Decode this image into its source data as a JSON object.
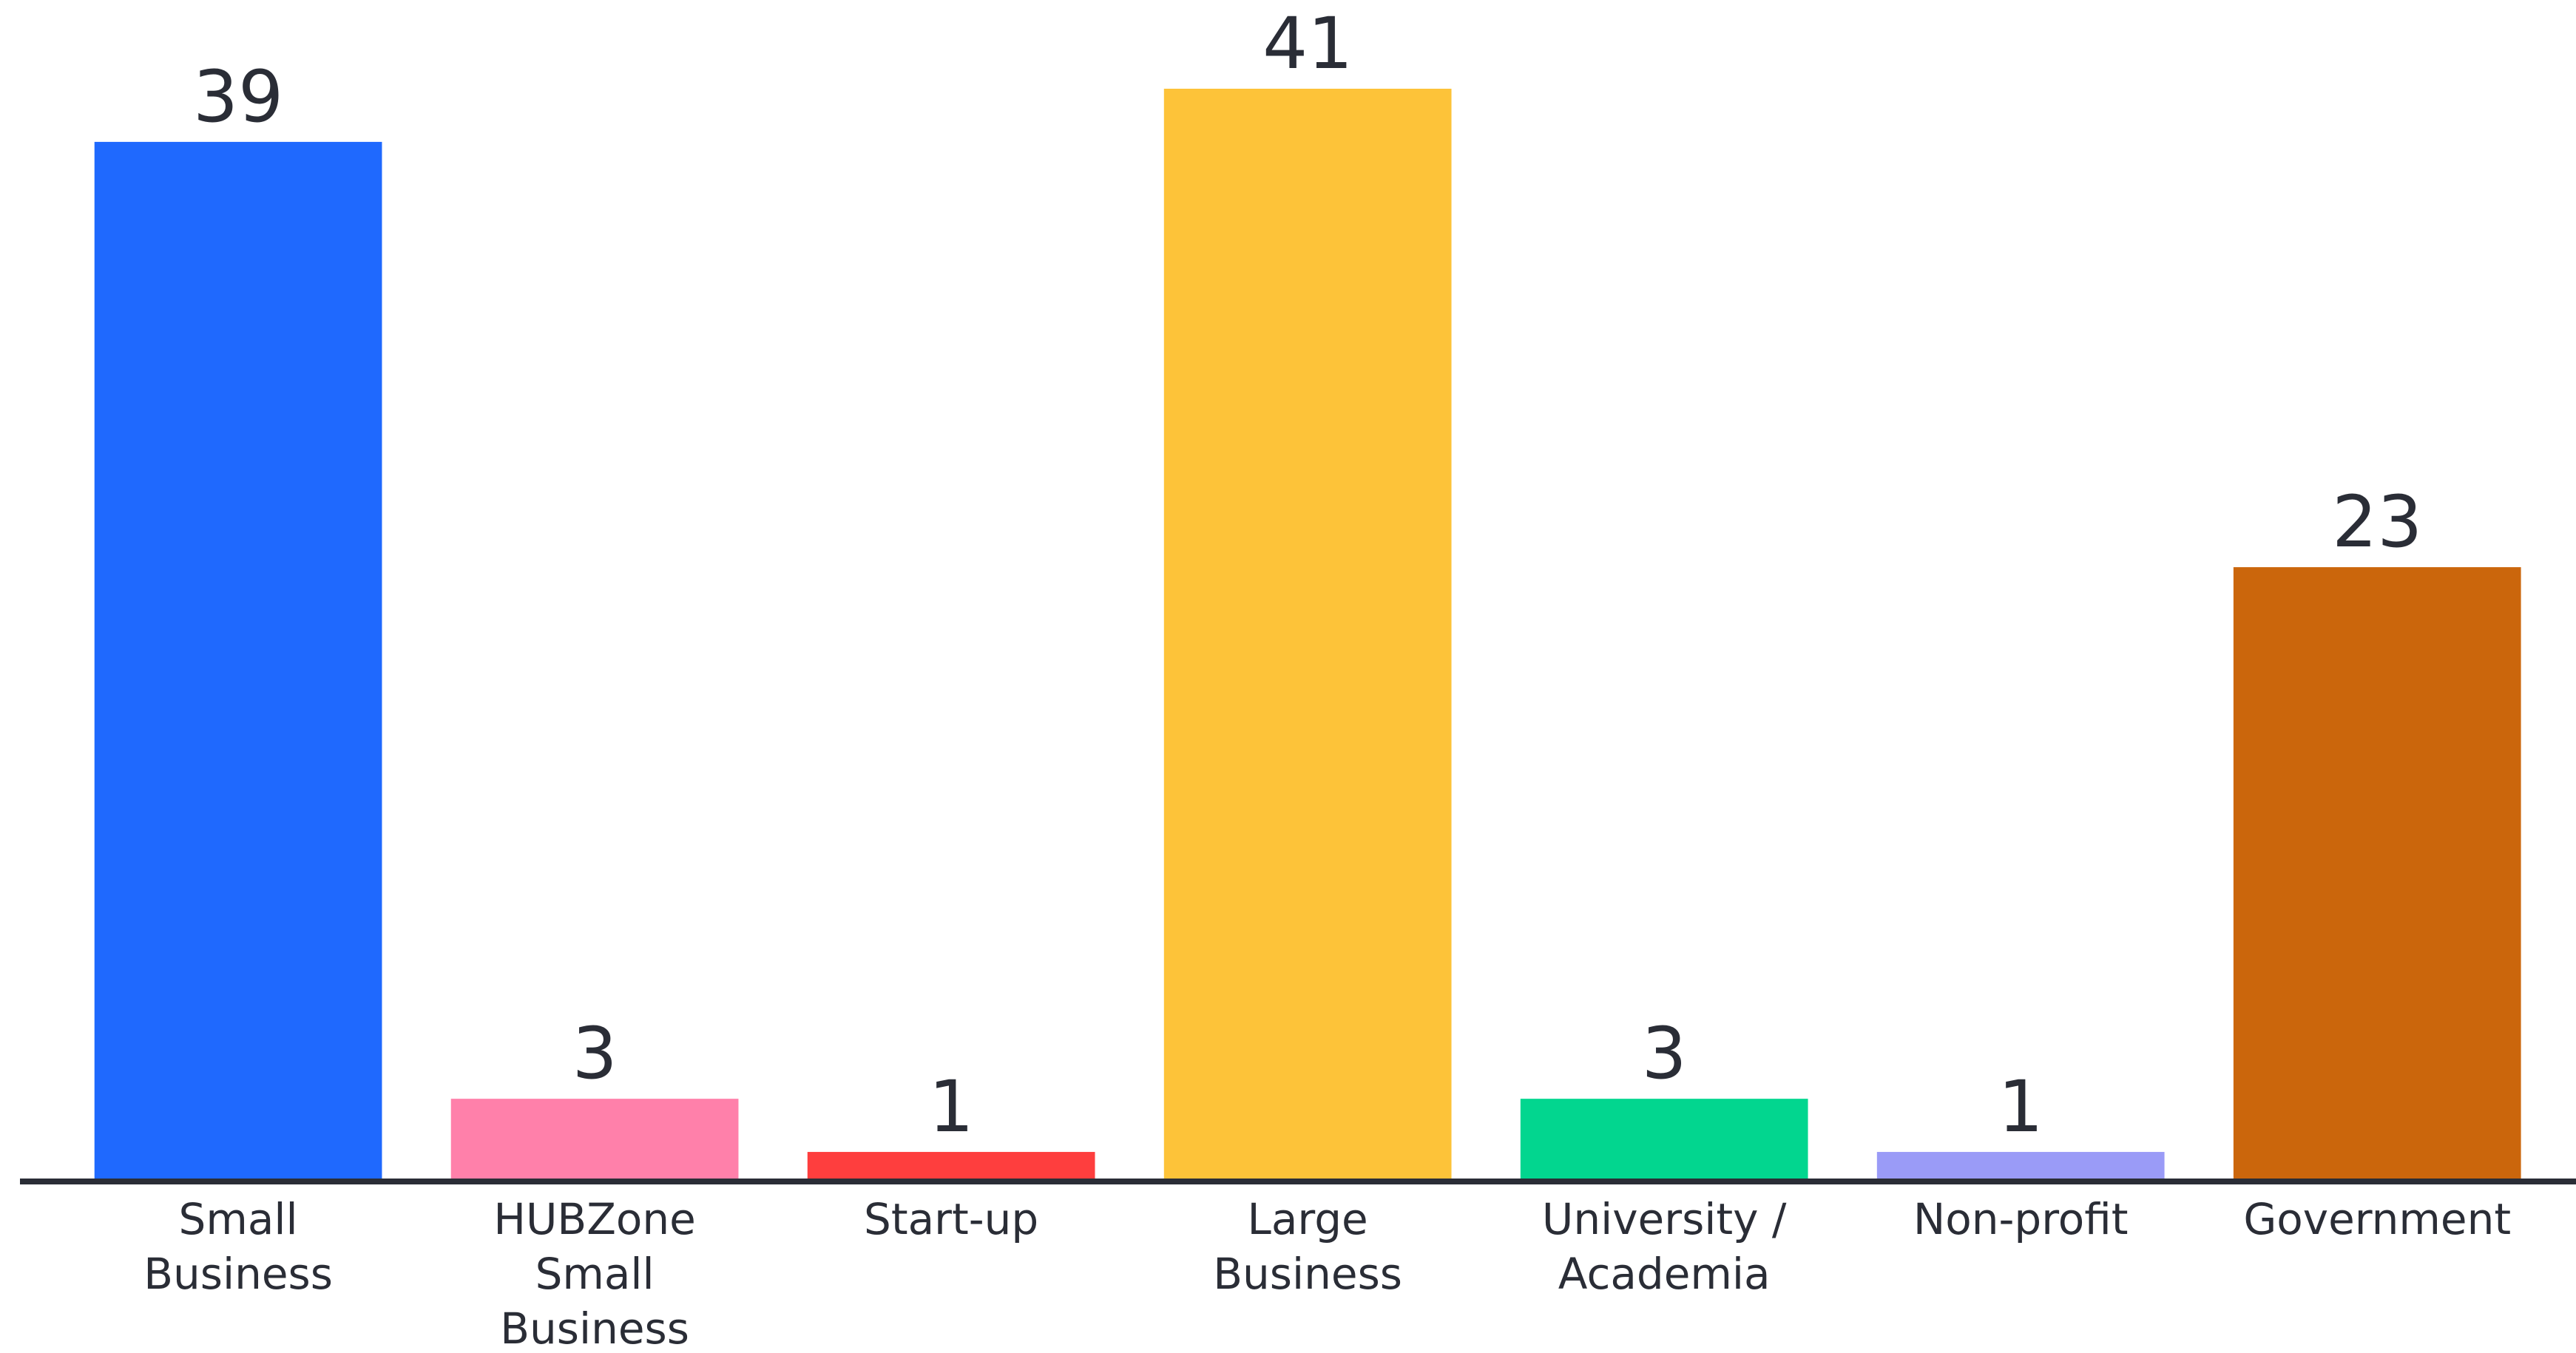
{
  "chart_data": {
    "type": "bar",
    "categories": [
      "Small Business",
      "HUBZone Small Business",
      "Start-up",
      "Large Business",
      "University / Academia",
      "Non-profit",
      "Government"
    ],
    "values": [
      39,
      3,
      1,
      41,
      3,
      1,
      23
    ],
    "colors": [
      "#1f69fe",
      "#ff80aa",
      "#fe3e3e",
      "#fdc339",
      "#02d68f",
      "#9a9bf7",
      "#cb660c"
    ]
  }
}
